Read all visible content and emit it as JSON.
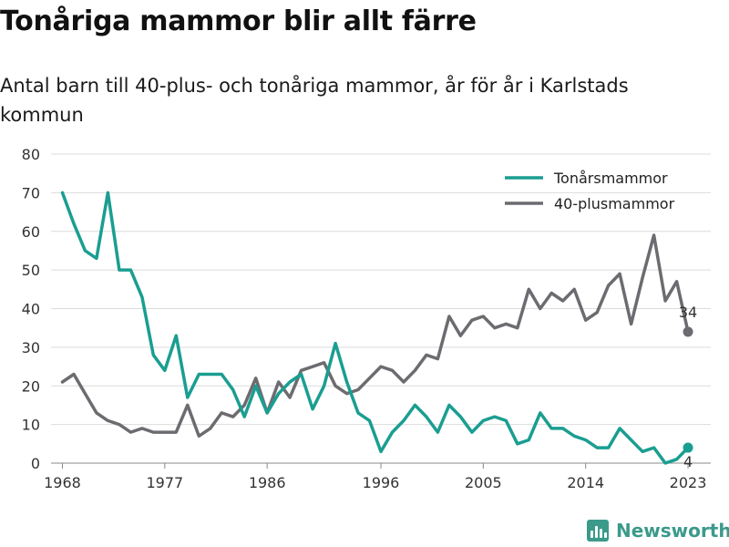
{
  "title": "Tonåriga mammor blir allt färre",
  "subtitle": "Antal barn till 40-plus- och tonåriga mammor, år för år i Karlstads kommun",
  "brand": "Newsworthy",
  "chart_data": {
    "type": "line",
    "x_start": 1968,
    "xticks": [
      1968,
      1977,
      1986,
      1996,
      2005,
      2014,
      2023
    ],
    "xlim": [
      1967,
      2025
    ],
    "ylim": [
      0,
      80
    ],
    "yticks": [
      0,
      10,
      20,
      30,
      40,
      50,
      60,
      70,
      80
    ],
    "grid": true,
    "legend_position": "top-right",
    "series": [
      {
        "name": "Tonårsmammor",
        "color": "#1a9e91",
        "values": [
          70,
          62,
          55,
          53,
          70,
          50,
          50,
          43,
          28,
          24,
          33,
          17,
          23,
          23,
          23,
          19,
          12,
          20,
          13,
          18,
          21,
          23,
          14,
          20,
          31,
          21,
          13,
          11,
          3,
          8,
          11,
          15,
          12,
          8,
          15,
          12,
          8,
          11,
          12,
          11,
          5,
          6,
          13,
          9,
          9,
          7,
          6,
          4,
          4,
          9,
          6,
          3,
          4,
          0,
          1,
          4
        ],
        "end_label": "4"
      },
      {
        "name": "40-plusmammor",
        "color": "#6d6b70",
        "values": [
          21,
          23,
          18,
          13,
          11,
          10,
          8,
          9,
          8,
          8,
          8,
          15,
          7,
          9,
          13,
          12,
          15,
          22,
          13,
          21,
          17,
          24,
          25,
          26,
          20,
          18,
          19,
          22,
          25,
          24,
          21,
          24,
          28,
          27,
          38,
          33,
          37,
          38,
          35,
          36,
          35,
          45,
          40,
          44,
          42,
          45,
          37,
          39,
          46,
          49,
          36,
          48,
          59,
          42,
          47,
          34
        ],
        "end_label": "34"
      }
    ]
  }
}
